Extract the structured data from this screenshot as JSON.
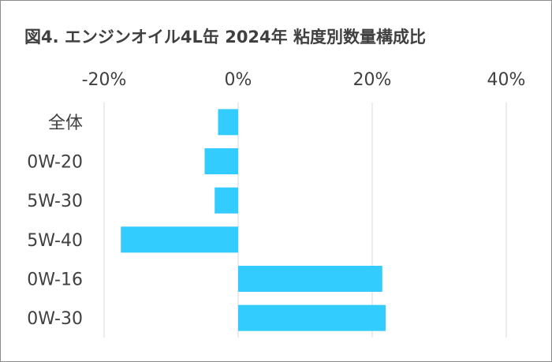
{
  "chart_data": {
    "type": "bar",
    "orientation": "horizontal",
    "title": "図4. エンジンオイル4L缶 2024年 粘度別数量構成比",
    "categories": [
      "全体",
      "0W-20",
      "5W-30",
      "5W-40",
      "0W-16",
      "0W-30"
    ],
    "values": [
      -3.0,
      -5.0,
      -3.5,
      -17.5,
      21.5,
      22.0
    ],
    "unit": "%",
    "xlim": [
      -20,
      40
    ],
    "ticks": [
      -20,
      0,
      20,
      40
    ],
    "tick_labels": [
      "-20%",
      "0%",
      "20%",
      "40%"
    ],
    "axis_position": "top",
    "grid": true,
    "bar_color": "#33ccff",
    "grid_color": "#d9d9d9"
  }
}
